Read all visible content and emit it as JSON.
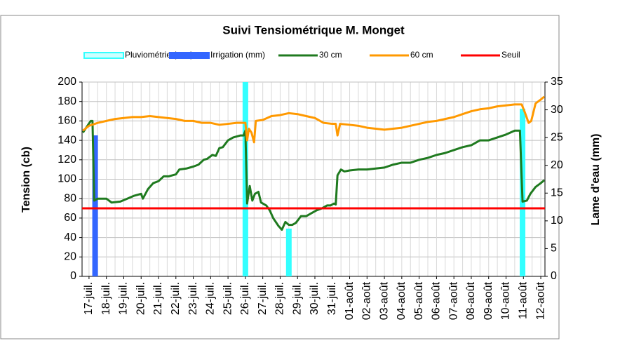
{
  "chart_data": {
    "type": "line",
    "title": "Suivi Tensiométrique M. Monget",
    "y_label": "Tension (cb)",
    "y2_label": "Lame d'eau (mm)",
    "xlim": [
      -0.4,
      26.24
    ],
    "xticks": [
      {
        "value": 0,
        "label": "17-juil."
      },
      {
        "value": 1,
        "label": "18-juil."
      },
      {
        "value": 2,
        "label": "19-juil."
      },
      {
        "value": 3,
        "label": "20-juil."
      },
      {
        "value": 4,
        "label": "21-juil."
      },
      {
        "value": 5,
        "label": "22-juil."
      },
      {
        "value": 6,
        "label": "23-juil."
      },
      {
        "value": 7,
        "label": "24-juil."
      },
      {
        "value": 8,
        "label": "25-juil."
      },
      {
        "value": 9,
        "label": "26-juil."
      },
      {
        "value": 10,
        "label": "27-juil."
      },
      {
        "value": 11,
        "label": "28-juil."
      },
      {
        "value": 12,
        "label": "29-juil."
      },
      {
        "value": 13,
        "label": "30-juil."
      },
      {
        "value": 14,
        "label": "31-juil."
      },
      {
        "value": 15,
        "label": "01-août"
      },
      {
        "value": 16,
        "label": "02-août"
      },
      {
        "value": 17,
        "label": "03-août"
      },
      {
        "value": 18,
        "label": "04-août"
      },
      {
        "value": 19,
        "label": "05-août"
      },
      {
        "value": 20,
        "label": "06-août"
      },
      {
        "value": 21,
        "label": "07-août"
      },
      {
        "value": 22,
        "label": "08-août"
      },
      {
        "value": 23,
        "label": "09-août"
      },
      {
        "value": 24,
        "label": "10-août"
      },
      {
        "value": 25,
        "label": "11-août"
      },
      {
        "value": 26,
        "label": "12-août"
      }
    ],
    "ylim": [
      0,
      200
    ],
    "yticks": [
      0,
      20,
      40,
      60,
      80,
      100,
      120,
      140,
      160,
      180,
      200
    ],
    "y2lim": [
      0,
      35
    ],
    "y2ticks": [
      0,
      5,
      10,
      15,
      20,
      25,
      30,
      35
    ],
    "grid": true,
    "series": [
      {
        "name": "Pluviométrie (mm)",
        "type": "bar",
        "axis": "y2",
        "color": "#33ffff",
        "x": [
          9.0,
          11.5,
          24.95
        ],
        "values": [
          35,
          8.6,
          30.2
        ]
      },
      {
        "name": "Irrigation (mm)",
        "type": "bar",
        "axis": "y2",
        "color": "#3366ff",
        "x": [
          0.35
        ],
        "values": [
          25.4
        ]
      },
      {
        "name": "30 cm",
        "type": "line",
        "color": "#1f7a1f",
        "x": [
          -0.35,
          0.1,
          0.2,
          0.3,
          0.5,
          1.0,
          1.3,
          1.8,
          2.2,
          2.6,
          3.0,
          3.1,
          3.4,
          3.7,
          4.0,
          4.3,
          4.6,
          5.0,
          5.2,
          5.6,
          6.0,
          6.3,
          6.6,
          6.8,
          7.1,
          7.3,
          7.5,
          7.7,
          8.0,
          8.3,
          8.7,
          8.9,
          9.0,
          9.1,
          9.25,
          9.4,
          9.55,
          9.75,
          9.9,
          10.2,
          10.4,
          10.6,
          10.9,
          11.1,
          11.3,
          11.5,
          11.7,
          11.9,
          12.2,
          12.5,
          12.8,
          13.1,
          13.4,
          13.7,
          13.9,
          14.1,
          14.2,
          14.3,
          14.5,
          14.7,
          15.0,
          15.5,
          16.0,
          16.5,
          17.0,
          17.5,
          18.0,
          18.5,
          19.0,
          19.5,
          20.0,
          20.5,
          21.0,
          21.5,
          22.0,
          22.5,
          23.0,
          23.5,
          24.0,
          24.5,
          24.8,
          24.95,
          25.2,
          25.4,
          25.7,
          26.0,
          26.2
        ],
        "values": [
          148,
          160,
          160,
          78,
          80,
          80,
          76,
          77,
          80,
          83,
          85,
          80,
          90,
          96,
          98,
          103,
          103,
          105,
          110,
          111,
          113,
          115,
          120,
          121,
          125,
          124,
          132,
          133,
          140,
          143,
          145,
          145,
          150,
          75,
          93,
          78,
          85,
          87,
          76,
          73,
          68,
          60,
          52,
          48,
          56,
          53,
          53,
          55,
          62,
          62,
          65,
          68,
          70,
          73,
          73,
          75,
          74,
          104,
          110,
          108,
          109,
          110,
          110,
          111,
          112,
          115,
          117,
          117,
          120,
          122,
          125,
          127,
          130,
          133,
          135,
          140,
          140,
          143,
          146,
          150,
          150,
          77,
          78,
          85,
          92,
          96,
          99
        ]
      },
      {
        "name": "60 cm",
        "type": "line",
        "color": "#ff9900",
        "x": [
          -0.35,
          0.0,
          0.5,
          1.0,
          1.5,
          2.0,
          2.5,
          3.0,
          3.5,
          4.0,
          4.5,
          5.0,
          5.5,
          6.0,
          6.5,
          7.0,
          7.5,
          8.0,
          8.5,
          8.9,
          9.0,
          9.1,
          9.2,
          9.35,
          9.5,
          9.6,
          10.0,
          10.5,
          11.0,
          11.5,
          12.0,
          12.5,
          13.0,
          13.5,
          14.0,
          14.2,
          14.3,
          14.45,
          15.0,
          15.5,
          16.0,
          16.5,
          17.0,
          17.5,
          18.0,
          18.5,
          19.0,
          19.5,
          20.0,
          20.5,
          21.0,
          21.5,
          22.0,
          22.5,
          23.0,
          23.5,
          24.0,
          24.5,
          24.9,
          25.1,
          25.3,
          25.45,
          25.7,
          26.0,
          26.2
        ],
        "values": [
          150,
          155,
          158,
          160,
          162,
          163,
          164,
          164,
          165,
          164,
          163,
          162,
          160,
          160,
          158,
          158,
          156,
          157,
          158,
          158,
          158,
          140,
          152,
          148,
          138,
          160,
          161,
          165,
          166,
          168,
          167,
          165,
          163,
          158,
          157,
          157,
          145,
          157,
          156,
          155,
          153,
          152,
          151,
          152,
          153,
          155,
          157,
          159,
          160,
          162,
          164,
          167,
          170,
          172,
          173,
          175,
          176,
          177,
          177,
          168,
          158,
          160,
          178,
          182,
          185
        ]
      },
      {
        "name": "Seuil",
        "type": "line",
        "color": "#ff0000",
        "x": [
          -0.4,
          26.24
        ],
        "values": [
          70,
          70
        ]
      }
    ]
  }
}
